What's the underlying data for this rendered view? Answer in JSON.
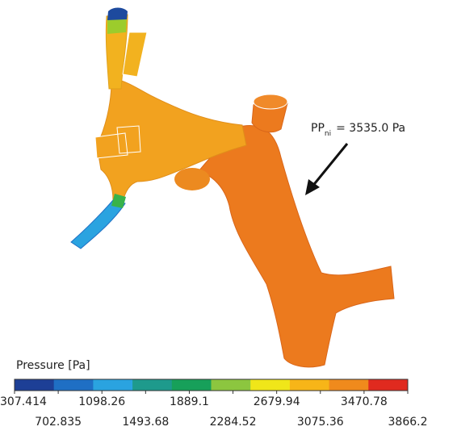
{
  "annotation": {
    "symbol": "PP",
    "subscript": "ni",
    "text": "= 3535.0 Pa"
  },
  "colorbar": {
    "title": "Pressure [Pa]",
    "colors": [
      "#1d3f96",
      "#1f6fc4",
      "#2aa3e0",
      "#1e9a8c",
      "#17a05a",
      "#8cc63f",
      "#f0e619",
      "#f7b518",
      "#f08a1c",
      "#e02a1f"
    ],
    "ticks": [
      307.414,
      702.835,
      1098.26,
      1493.68,
      1889.1,
      2284.52,
      2679.94,
      3075.36,
      3470.78,
      3866.2
    ]
  }
}
